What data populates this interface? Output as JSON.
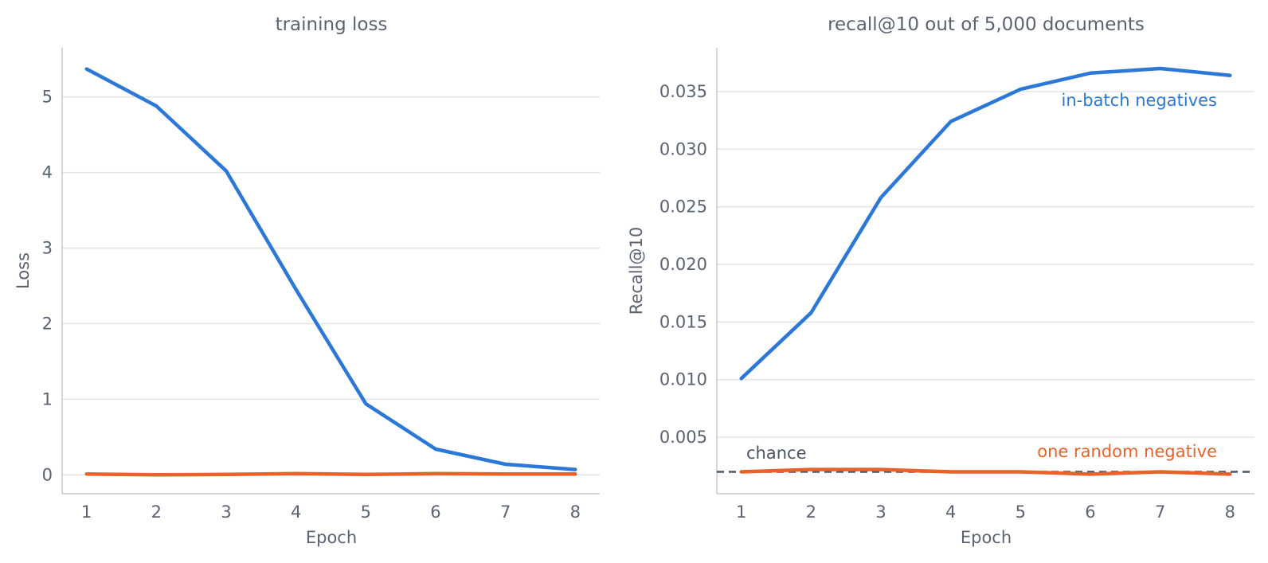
{
  "chart_data": [
    {
      "type": "line",
      "title": "training loss",
      "xlabel": "Epoch",
      "ylabel": "Loss",
      "x": [
        1,
        2,
        3,
        4,
        5,
        6,
        7,
        8
      ],
      "xticks": [
        "1",
        "2",
        "3",
        "4",
        "5",
        "6",
        "7",
        "8"
      ],
      "xlim": [
        0.65,
        8.35
      ],
      "ylim": [
        -0.25,
        5.65
      ],
      "yticks": [
        "0",
        "1",
        "2",
        "3",
        "4",
        "5"
      ],
      "grid": "horizontal",
      "series": [
        {
          "color": "#2b78d8",
          "values": [
            5.37,
            4.88,
            4.02,
            2.45,
            0.94,
            0.34,
            0.14,
            0.07
          ]
        },
        {
          "color": "#e8622a",
          "values": [
            0.01,
            0.0,
            0.005,
            0.015,
            0.005,
            0.015,
            0.01,
            0.01
          ]
        }
      ]
    },
    {
      "type": "line",
      "title": "recall@10 out of 5,000 documents",
      "xlabel": "Epoch",
      "ylabel": "Recall@10",
      "x": [
        1,
        2,
        3,
        4,
        5,
        6,
        7,
        8
      ],
      "xticks": [
        "1",
        "2",
        "3",
        "4",
        "5",
        "6",
        "7",
        "8"
      ],
      "xlim": [
        0.65,
        8.35
      ],
      "ylim": [
        0.0001,
        0.0388
      ],
      "yticks": [
        "0.005",
        "0.010",
        "0.015",
        "0.020",
        "0.025",
        "0.030",
        "0.035"
      ],
      "grid": "horizontal",
      "reference_line": {
        "label": "chance",
        "value": 0.002,
        "color": "#4a5563"
      },
      "series": [
        {
          "name": "in-batch negatives",
          "color": "#2b78d8",
          "values": [
            0.0101,
            0.0158,
            0.0258,
            0.0324,
            0.0352,
            0.0366,
            0.037,
            0.0364
          ]
        },
        {
          "name": "one random negative",
          "color": "#e8622a",
          "values": [
            0.002,
            0.0022,
            0.0022,
            0.002,
            0.002,
            0.0018,
            0.002,
            0.0018
          ]
        }
      ]
    }
  ]
}
